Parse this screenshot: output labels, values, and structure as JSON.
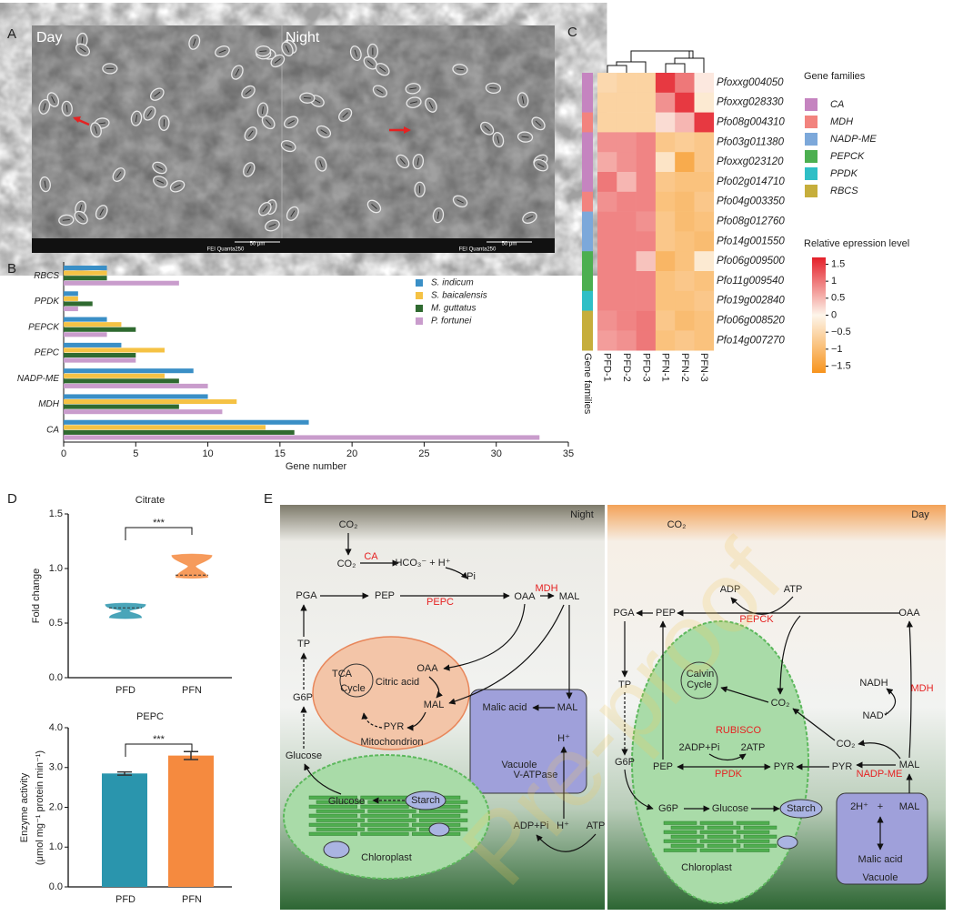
{
  "panel_labels": [
    "A",
    "B",
    "C",
    "D",
    "E"
  ],
  "panel_a": {
    "day": "Day",
    "night": "Night",
    "scale_bar": "50 μm",
    "instrument": "FEI Quanta250"
  },
  "chart_data": [
    {
      "type": "bar",
      "orientation": "horizontal",
      "categories": [
        "RBCS",
        "PPDK",
        "PEPCK",
        "PEPC",
        "NADP-ME",
        "MDH",
        "CA"
      ],
      "series": [
        {
          "name": "S. indicum",
          "color": "#3a8fc6",
          "values": [
            3,
            1,
            3,
            4,
            9,
            10,
            17
          ]
        },
        {
          "name": "S. baicalensis",
          "color": "#f5c244",
          "values": [
            3,
            1,
            4,
            7,
            7,
            12,
            14
          ]
        },
        {
          "name": "M. guttatus",
          "color": "#2f6a30",
          "values": [
            3,
            2,
            5,
            5,
            8,
            8,
            16
          ]
        },
        {
          "name": "P. fortunei",
          "color": "#c99ccc",
          "values": [
            8,
            1,
            3,
            5,
            10,
            11,
            33
          ]
        }
      ],
      "xlim": [
        0,
        35
      ],
      "xticks": [
        0,
        5,
        10,
        15,
        20,
        25,
        30,
        35
      ],
      "xlabel": "Gene number",
      "legend": "right"
    },
    {
      "type": "heatmap",
      "columns": [
        "PFD-1",
        "PFD-2",
        "PFD-3",
        "PFN-1",
        "PFN-2",
        "PFN-3"
      ],
      "rows": [
        "Pfoxxg004050",
        "Pfoxxg028330",
        "Pfo08g004310",
        "Pfo03g011380",
        "Pfoxxg023120",
        "Pfo02g014710",
        "Pfo04g003350",
        "Pfo08g012760",
        "Pfo14g001550",
        "Pfo06g009500",
        "Pfo11g009540",
        "Pfo19g002840",
        "Pfo06g008520",
        "Pfo14g007270"
      ],
      "row_families": [
        "CA",
        "CA",
        "MDH",
        "CA",
        "CA",
        "CA",
        "MDH",
        "NADP-ME",
        "NADP-ME",
        "PEPCK",
        "PEPCK",
        "PPDK",
        "RBCS",
        "RBCS"
      ],
      "values": [
        [
          -0.5,
          -0.6,
          -0.6,
          1.5,
          1.0,
          0.1
        ],
        [
          -0.6,
          -0.6,
          -0.6,
          0.8,
          1.5,
          -0.2
        ],
        [
          -0.6,
          -0.6,
          -0.6,
          0.2,
          0.5,
          1.5
        ],
        [
          0.8,
          0.8,
          0.9,
          -0.8,
          -0.7,
          -0.8
        ],
        [
          0.6,
          0.8,
          0.9,
          -0.3,
          -1.3,
          -0.8
        ],
        [
          1.0,
          0.5,
          0.9,
          -0.8,
          -0.9,
          -0.9
        ],
        [
          0.8,
          0.9,
          0.9,
          -0.9,
          -1.0,
          -0.8
        ],
        [
          0.9,
          0.9,
          0.8,
          -0.8,
          -1.0,
          -0.9
        ],
        [
          0.9,
          0.9,
          0.9,
          -0.8,
          -0.9,
          -1.0
        ],
        [
          0.9,
          0.9,
          0.4,
          -1.1,
          -0.9,
          -0.2
        ],
        [
          0.9,
          0.9,
          0.9,
          -0.9,
          -0.8,
          -0.9
        ],
        [
          0.9,
          0.9,
          0.9,
          -0.9,
          -0.9,
          -0.8
        ],
        [
          0.8,
          0.9,
          1.0,
          -0.8,
          -1.0,
          -0.9
        ],
        [
          0.7,
          0.8,
          1.0,
          -0.9,
          -0.8,
          -0.9
        ]
      ],
      "colormap": [
        "#f7941d",
        "#fdf5ea",
        "#e4202a"
      ],
      "clim": [
        -1.7,
        1.7
      ],
      "colorbar_title": "Relative epression level",
      "colorbar_ticks": [
        1.5,
        1,
        0.5,
        0,
        {
          "value": -0.5,
          "label": "−0.5"
        },
        {
          "value": -1,
          "label": "−1"
        },
        {
          "value": -1.5,
          "label": "−1.5"
        }
      ],
      "legend_title": "Gene families",
      "families": [
        {
          "name": "CA",
          "color": "#c584c0"
        },
        {
          "name": "MDH",
          "color": "#f2837e"
        },
        {
          "name": "NADP-ME",
          "color": "#7ca8da"
        },
        {
          "name": "PEPCK",
          "color": "#4caf50"
        },
        {
          "name": "PPDK",
          "color": "#2fbfc6"
        },
        {
          "name": "RBCS",
          "color": "#c6ae3c"
        }
      ],
      "family_bar_label": "Gene families"
    },
    {
      "type": "violin",
      "title": "Citrate",
      "categories": [
        "PFD",
        "PFN"
      ],
      "colors": [
        "#2a95ad",
        "#f58a3f"
      ],
      "medians": [
        0.64,
        0.94
      ],
      "mins": [
        0.55,
        0.92
      ],
      "maxs": [
        0.67,
        1.12
      ],
      "ylim": [
        0,
        1.5
      ],
      "yticks": [
        {
          "value": 0,
          "label": "0.0"
        },
        0.5,
        {
          "value": 1,
          "label": "1.0"
        },
        1.5
      ],
      "ylabel": "Fold change",
      "significance": "***"
    },
    {
      "type": "bar",
      "orientation": "vertical",
      "title": "PEPC",
      "categories": [
        "PFD",
        "PFN"
      ],
      "colors": [
        "#2a95ad",
        "#f58a3f"
      ],
      "values": [
        2.85,
        3.3
      ],
      "errors": [
        0.04,
        0.1
      ],
      "ylim": [
        0,
        4
      ],
      "yticks": [
        {
          "value": 0,
          "label": "0.0"
        },
        {
          "value": 1,
          "label": "1.0"
        },
        {
          "value": 2,
          "label": "2.0"
        },
        {
          "value": 3,
          "label": "3.0"
        },
        {
          "value": 4,
          "label": "4.0"
        }
      ],
      "ylabel": [
        "Enzyme activity",
        "(μmol mg⁻¹ protein min⁻¹)"
      ],
      "significance": "***"
    }
  ],
  "diagram": {
    "watermark": "Pre-proof",
    "labels": [
      "Night",
      "CO₂",
      "CO₂",
      "CA",
      "HCO₃⁻ + H⁺",
      "Pi",
      "PGA",
      "PEP",
      "PEPC",
      "OAA",
      "MDH",
      "MAL",
      "TP",
      "OAA",
      "TCA",
      "Cycle",
      "Citric acid",
      "MAL",
      "G6P",
      "PYR",
      "Mitochondrion",
      "Malic acid",
      "MAL",
      "H⁺",
      "Vacuole",
      "Glucose",
      "V-ATPase",
      "Glucose",
      "Starch",
      "ADP+Pi",
      "H⁺",
      "ATP",
      "Chloroplast",
      "CO₂",
      "Day",
      "ADP",
      "ATP",
      "PGA",
      "PEP",
      "PEPCK",
      "OAA",
      "NADH",
      "Calvin",
      "Cycle",
      "CO₂",
      "MDH",
      "TP",
      "NAD⁺",
      "RUBISCO",
      "CO₂",
      "2ADP+Pi",
      "2ATP",
      "G6P",
      "PEP",
      "PYR",
      "PYR",
      "MAL",
      "PPDK",
      "NADP-ME",
      "G6P",
      "Glucose",
      "Starch",
      "2H⁺",
      "+",
      "MAL",
      "Malic acid",
      "Chloroplast",
      "Vacuole"
    ]
  }
}
